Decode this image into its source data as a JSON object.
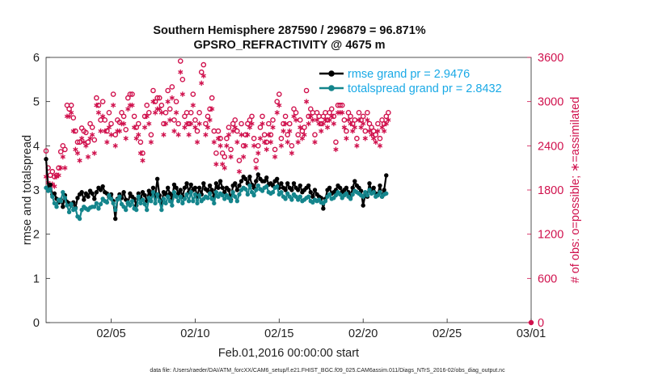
{
  "page": {
    "title_line1": "Southern Hemisphere 287590 / 296879 = 96.871%",
    "title_line2": "GPSRO_REFRACTIVITY @ 4675 m",
    "xlabel": "Feb.01,2016 00:00:00 start",
    "ylabel_left": "rmse and totalspread",
    "ylabel_right": "# of obs: o=possible; ∗=assimilated",
    "footer": "data file: /Users/raeder/DAI/ATM_forcXX/CAM6_setup/f.e21.FHIST_BGC.f09_025.CAM6assim.011/Diags_NTrS_2016-02/obs_diag_output.nc",
    "legend": [
      {
        "label": "rmse grand pr = 2.9476",
        "color": "#000000"
      },
      {
        "label": "totalspread grand pr = 2.8432",
        "color": "#14858c"
      }
    ]
  },
  "chart_data": {
    "type": "line",
    "x_unit": "days since Feb.01,2016 00:00:00",
    "xlim": [
      0.125,
      29
    ],
    "x_ticks": [
      {
        "value": 4,
        "label": "02/05"
      },
      {
        "value": 9,
        "label": "02/10"
      },
      {
        "value": 14,
        "label": "02/15"
      },
      {
        "value": 19,
        "label": "02/20"
      },
      {
        "value": 24,
        "label": "02/25"
      },
      {
        "value": 29,
        "label": "03/01"
      }
    ],
    "ylim": [
      0,
      6
    ],
    "y_ticks": [
      0,
      1,
      2,
      3,
      4,
      5,
      6
    ],
    "y2lim": [
      0,
      3600
    ],
    "y2_ticks": [
      0,
      600,
      1200,
      1800,
      2400,
      3000,
      3600
    ],
    "grid": false,
    "legend_position": "top-right",
    "series": [
      {
        "name": "rmse grand pr = 2.9476",
        "axis": "left",
        "color": "#000000",
        "values": [
          3.7,
          3.05,
          3.12,
          2.9,
          2.92,
          2.8,
          2.72,
          2.78,
          2.62,
          2.88,
          2.73,
          2.7,
          2.65,
          2.72,
          2.6,
          2.82,
          2.9,
          2.95,
          2.78,
          2.92,
          2.85,
          2.98,
          2.92,
          2.8,
          2.95,
          3.05,
          3.0,
          3.08,
          2.95,
          2.92,
          2.85,
          2.9,
          2.75,
          2.35,
          2.8,
          2.9,
          2.82,
          2.95,
          2.78,
          2.7,
          2.92,
          2.85,
          2.8,
          2.65,
          2.92,
          2.82,
          2.95,
          2.88,
          2.75,
          2.98,
          2.9,
          3.05,
          2.85,
          3.25,
          2.88,
          2.7,
          2.95,
          2.9,
          3.05,
          2.92,
          2.8,
          3.12,
          3.05,
          2.92,
          3.0,
          2.85,
          3.05,
          3.15,
          2.95,
          3.12,
          3.0,
          3.05,
          2.85,
          3.05,
          2.9,
          3.15,
          3.02,
          2.98,
          3.1,
          3.0,
          2.85,
          3.15,
          3.05,
          3.2,
          3.05,
          2.95,
          3.05,
          3.0,
          2.78,
          3.1,
          3.15,
          3.0,
          3.1,
          3.2,
          3.3,
          3.25,
          3.15,
          3.3,
          3.12,
          3.05,
          3.2,
          3.35,
          3.25,
          3.2,
          3.2,
          3.28,
          3.12,
          3.15,
          3.1,
          3.2,
          3.25,
          3.05,
          3.15,
          3.05,
          3.0,
          3.15,
          3.05,
          3.0,
          3.15,
          3.05,
          3.0,
          3.1,
          2.95,
          3.0,
          3.05,
          3.1,
          2.95,
          2.85,
          3.0,
          2.9,
          2.85,
          2.82,
          2.58,
          2.8,
          3.0,
          3.05,
          2.92,
          2.95,
          3.0,
          3.1,
          3.05,
          2.95,
          3.0,
          3.05,
          2.95,
          2.85,
          3.05,
          3.2,
          3.1,
          3.05,
          2.98,
          2.65,
          2.9,
          2.85,
          3.15,
          2.95,
          3.05,
          2.92,
          2.9,
          3.1,
          2.85,
          3.0,
          3.33
        ],
        "x_start": 0.125,
        "x_step": 0.125
      },
      {
        "name": "totalspread grand pr = 2.8432",
        "axis": "left",
        "color": "#14858c",
        "values": [
          3.05,
          2.98,
          3.02,
          2.85,
          2.7,
          2.62,
          2.78,
          2.75,
          2.95,
          2.82,
          2.65,
          2.5,
          2.68,
          2.55,
          2.58,
          2.4,
          2.35,
          2.55,
          2.62,
          2.58,
          2.55,
          2.6,
          2.62,
          2.62,
          2.7,
          2.58,
          2.68,
          2.8,
          2.75,
          2.72,
          2.88,
          2.8,
          2.7,
          2.55,
          2.78,
          2.85,
          2.68,
          2.62,
          2.55,
          2.72,
          2.65,
          2.75,
          2.58,
          2.55,
          2.85,
          2.7,
          2.78,
          2.68,
          2.55,
          2.82,
          2.75,
          2.95,
          2.7,
          2.9,
          2.75,
          2.55,
          2.8,
          2.7,
          2.85,
          2.75,
          2.65,
          2.95,
          2.85,
          2.75,
          2.85,
          2.7,
          2.8,
          2.9,
          2.75,
          2.95,
          2.75,
          2.9,
          2.7,
          2.88,
          2.75,
          2.8,
          2.85,
          2.82,
          2.92,
          2.8,
          2.7,
          2.95,
          2.85,
          2.92,
          2.88,
          2.8,
          2.88,
          2.82,
          2.75,
          2.95,
          2.85,
          2.75,
          2.9,
          3.0,
          3.05,
          3.02,
          2.9,
          3.1,
          2.95,
          2.88,
          3.0,
          3.1,
          3.02,
          2.98,
          3.05,
          3.08,
          2.95,
          2.92,
          2.95,
          3.05,
          3.08,
          2.9,
          2.95,
          2.85,
          2.8,
          2.92,
          2.85,
          2.78,
          2.9,
          2.85,
          2.78,
          2.85,
          2.75,
          2.78,
          2.82,
          2.85,
          2.75,
          2.72,
          2.78,
          2.75,
          2.78,
          2.72,
          2.7,
          2.75,
          2.85,
          2.9,
          2.8,
          2.82,
          2.88,
          2.95,
          2.9,
          2.82,
          2.88,
          2.92,
          2.85,
          2.8,
          2.9,
          2.98,
          2.95,
          2.92,
          2.88,
          2.85,
          2.95,
          2.88,
          3.0,
          2.92,
          2.95,
          2.85,
          2.88,
          2.95,
          2.85,
          2.9,
          2.92
        ],
        "x_start": 0.125,
        "x_step": 0.125
      },
      {
        "name": "possible",
        "axis": "right",
        "marker": "circle",
        "color": "#d0114d",
        "values": [
          2330,
          2100,
          2000,
          2050,
          1980,
          2000,
          2100,
          2320,
          2400,
          2350,
          2950,
          2900,
          2950,
          2780,
          2600,
          2450,
          2450,
          2640,
          2600,
          2580,
          2450,
          2700,
          2650,
          2480,
          3050,
          2950,
          2750,
          3000,
          2750,
          2600,
          2850,
          2700,
          3100,
          2550,
          2750,
          2720,
          2850,
          2800,
          2620,
          3050,
          3100,
          3100,
          2800,
          2650,
          2700,
          2450,
          2300,
          2800,
          2950,
          2850,
          2550,
          3150,
          3000,
          3050,
          3050,
          2950,
          2700,
          2850,
          3150,
          2900,
          3200,
          2750,
          3000,
          2700,
          3550,
          3300,
          2800,
          2850,
          2700,
          2850,
          3100,
          2750,
          2600,
          2850,
          3400,
          3500,
          2700,
          2800,
          2900,
          3050,
          2600,
          2300,
          2600,
          2500,
          2300,
          2250,
          2500,
          2650,
          2350,
          2700,
          2750,
          2600,
          2200,
          2700,
          2400,
          2550,
          2700,
          2750,
          2800,
          2500,
          2200,
          2400,
          2650,
          2800,
          2550,
          2450,
          2700,
          2550,
          2750,
          2350,
          3000,
          3100,
          2500,
          2700,
          2800,
          2550,
          2700,
          2400,
          2900,
          2850,
          2550,
          2750,
          2600,
          2650,
          3150,
          2800,
          2900,
          2850,
          2550,
          2850,
          2800,
          2700,
          2800,
          2850,
          2750,
          2850,
          2900,
          2800,
          2450,
          2950,
          2950,
          2950,
          2750,
          2600,
          2850,
          2800,
          2700,
          2750,
          2500,
          2850,
          2750,
          2800,
          2600,
          2850,
          2700,
          2650,
          2600,
          2550,
          2700,
          2500,
          2750,
          2700,
          2800,
          2850
        ],
        "x_start": 0.125,
        "x_step": 0.125
      },
      {
        "name": "assimilated",
        "axis": "right",
        "marker": "asterisk",
        "color": "#d0114d",
        "values": [
          1980,
          1900,
          1800,
          1880,
          1850,
          1980,
          2000,
          2100,
          2250,
          2100,
          2800,
          2800,
          2850,
          2600,
          2350,
          2300,
          2200,
          2500,
          2450,
          2400,
          2250,
          2500,
          2550,
          2300,
          2950,
          2850,
          2600,
          2800,
          2600,
          2450,
          2650,
          2550,
          2950,
          2400,
          2600,
          2600,
          2700,
          2700,
          2500,
          2900,
          2950,
          2950,
          2650,
          2500,
          2550,
          2300,
          2200,
          2650,
          2800,
          2700,
          2450,
          3000,
          2850,
          2900,
          2900,
          2850,
          2550,
          2700,
          3000,
          2750,
          3050,
          2600,
          2850,
          2550,
          3400,
          3100,
          2650,
          2700,
          2550,
          2700,
          2950,
          2650,
          2450,
          2700,
          3250,
          3350,
          2550,
          2650,
          2750,
          2900,
          2450,
          2150,
          2500,
          2400,
          2150,
          2100,
          2400,
          2550,
          2250,
          2600,
          2650,
          2450,
          2050,
          2550,
          2250,
          2400,
          2550,
          2650,
          2700,
          2400,
          2100,
          2300,
          2500,
          2700,
          2450,
          2350,
          2550,
          2450,
          2650,
          2250,
          2850,
          2950,
          2400,
          2600,
          2700,
          2450,
          2600,
          2300,
          2800,
          2750,
          2450,
          2650,
          2500,
          2550,
          3000,
          2700,
          2800,
          2750,
          2450,
          2750,
          2700,
          2600,
          2700,
          2750,
          2650,
          2750,
          2800,
          2700,
          2350,
          2850,
          2850,
          2850,
          2650,
          2500,
          2750,
          2700,
          2600,
          2650,
          2400,
          2750,
          2650,
          2700,
          2500,
          2750,
          2600,
          2550,
          2500,
          2450,
          2600,
          2400,
          2650,
          2600,
          2700,
          2750
        ],
        "x_start": 0.125,
        "x_step": 0.125
      }
    ]
  }
}
